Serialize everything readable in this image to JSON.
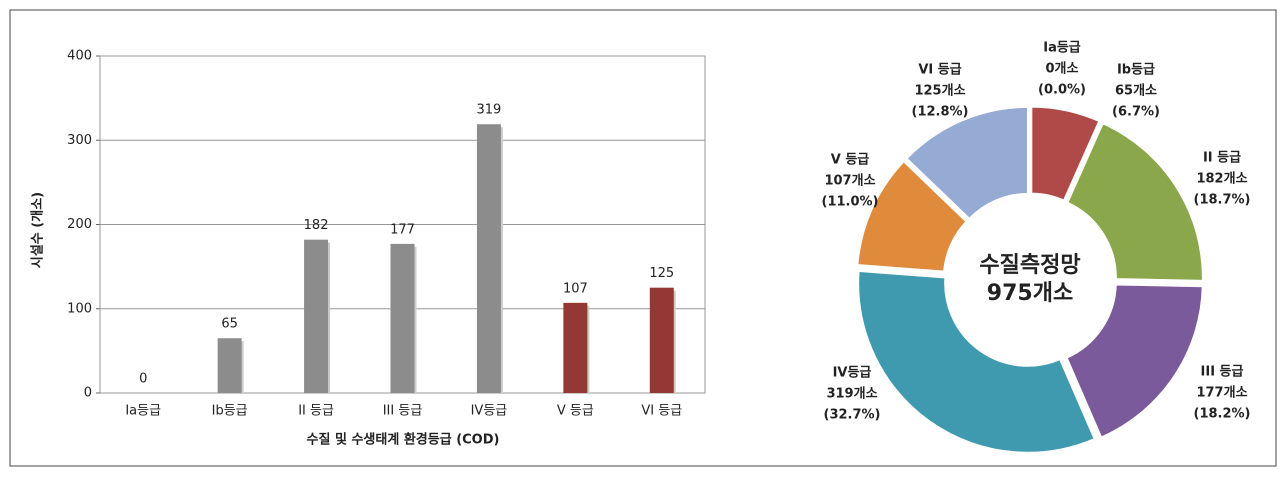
{
  "chart_data": [
    {
      "type": "bar",
      "categories": [
        "Ia등급",
        "Ib등급",
        "II 등급",
        "III 등급",
        "IV등급",
        "V 등급",
        "VI 등급"
      ],
      "values": [
        0,
        65,
        182,
        177,
        319,
        107,
        125
      ],
      "colors": [
        "#8c8c8c",
        "#8c8c8c",
        "#8c8c8c",
        "#8c8c8c",
        "#8c8c8c",
        "#953735",
        "#953735"
      ],
      "ylim": [
        0,
        400
      ],
      "yticks": [
        0,
        100,
        200,
        300,
        400
      ],
      "grid": true,
      "y_label": "시설수 (개소)",
      "x_label": "수질 및 수생태계 환경등급 (COD)"
    },
    {
      "type": "donut",
      "center_label": [
        "수질측정망",
        "975개소"
      ],
      "categories": [
        "Ia등급",
        "Ib등급",
        "II 등급",
        "III 등급",
        "IV등급",
        "V 등급",
        "VI 등급"
      ],
      "values": [
        0,
        65,
        182,
        177,
        319,
        107,
        125
      ],
      "value_labels": [
        "0개소",
        "65개소",
        "182개소",
        "177개소",
        "319개소",
        "107개소",
        "125개소"
      ],
      "percents": [
        0.0,
        6.7,
        18.7,
        18.2,
        32.7,
        11.0,
        12.8
      ],
      "percent_labels": [
        "(0.0%)",
        "(6.7%)",
        "(18.7%)",
        "(18.2%)",
        "(32.7%)",
        "(11.0%)",
        "(12.8%)"
      ],
      "colors": [
        "#a94442",
        "#b04a48",
        "#8aa84b",
        "#7a5a9a",
        "#3f9ab0",
        "#e08a3c",
        "#95abd4"
      ]
    }
  ]
}
